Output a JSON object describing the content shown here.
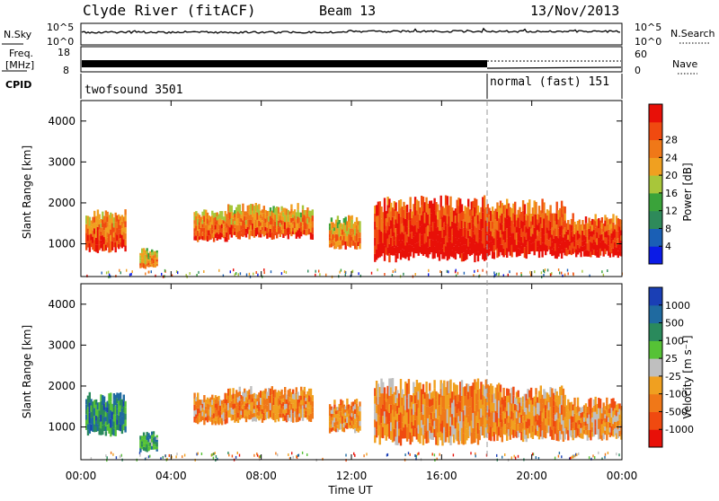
{
  "header": {
    "title": "Clyde River (fitACF)",
    "beam": "Beam 13",
    "date": "13/Nov/2013"
  },
  "strip_panels": {
    "nsky_label": "N.Sky",
    "nsearch_label": "N.Search",
    "nsky_ticks": [
      "10^5",
      "10^0"
    ],
    "freq_label_line1": "Freq.",
    "freq_label_line2": "[MHz]",
    "freq_ticks": [
      "18",
      "8"
    ],
    "nave_label": "Nave",
    "nave_ticks": [
      "60",
      "0"
    ],
    "cpid_label": "CPID",
    "cpid_segments": [
      {
        "name": "twofsound 3501",
        "start_hour": 0,
        "end_hour": 18
      },
      {
        "name": "normal (fast) 151",
        "start_hour": 18,
        "end_hour": 24
      }
    ]
  },
  "colors": {
    "power": [
      "#0b1be6",
      "#1a5fb5",
      "#2e8a5a",
      "#3aa33a",
      "#a8c63a",
      "#f0a020",
      "#f07818",
      "#f04a10",
      "#e81008"
    ],
    "velocity": [
      "#1a3fb5",
      "#1f6aa0",
      "#2a8a5c",
      "#56c236",
      "#bfbfbf",
      "#f0a020",
      "#f07818",
      "#f04a10",
      "#e81008"
    ]
  },
  "chart_data": [
    {
      "type": "heatmap",
      "name": "power",
      "xlabel": "",
      "ylabel": "Slant Range [km]",
      "xlim": [
        0,
        24
      ],
      "ylim": [
        200,
        4500
      ],
      "yticks": [
        "1000",
        "2000",
        "3000",
        "4000"
      ],
      "colorbar_label": "Power [dB]",
      "colorbar_ticks": [
        "4",
        "8",
        "12",
        "16",
        "20",
        "24",
        "28"
      ],
      "regions": [
        {
          "t0": 0.2,
          "t1": 2.0,
          "r0": 700,
          "r1": 1850,
          "level": 0.75
        },
        {
          "t0": 2.6,
          "t1": 3.4,
          "r0": 350,
          "r1": 900,
          "level": 0.6
        },
        {
          "t0": 5.0,
          "t1": 6.5,
          "r0": 1000,
          "r1": 1850,
          "level": 0.72
        },
        {
          "t0": 6.5,
          "t1": 10.3,
          "r0": 1050,
          "r1": 2000,
          "level": 0.68
        },
        {
          "t0": 11.0,
          "t1": 12.4,
          "r0": 800,
          "r1": 1700,
          "level": 0.62
        },
        {
          "t0": 13.0,
          "t1": 18.0,
          "r0": 450,
          "r1": 2200,
          "level": 0.9
        },
        {
          "t0": 18.0,
          "t1": 21.5,
          "r0": 550,
          "r1": 2100,
          "level": 0.85
        },
        {
          "t0": 21.5,
          "t1": 24.0,
          "r0": 600,
          "r1": 1750,
          "level": 0.85
        }
      ]
    },
    {
      "type": "heatmap",
      "name": "velocity",
      "xlabel": "Time UT",
      "ylabel": "Slant Range [km]",
      "xlim": [
        0,
        24
      ],
      "ylim": [
        200,
        4500
      ],
      "xticks": [
        "00:00",
        "04:00",
        "08:00",
        "12:00",
        "16:00",
        "20:00",
        "00:00"
      ],
      "yticks": [
        "1000",
        "2000",
        "3000",
        "4000"
      ],
      "colorbar_label": "Velocity [m s⁻¹]",
      "colorbar_ticks": [
        "1000",
        "500",
        "100",
        "25",
        "-25",
        "-100",
        "-500",
        "-1000"
      ],
      "regions": [
        {
          "t0": 0.2,
          "t1": 2.0,
          "r0": 700,
          "r1": 1850,
          "level": 0.25
        },
        {
          "t0": 2.6,
          "t1": 3.4,
          "r0": 350,
          "r1": 900,
          "level": 0.3
        },
        {
          "t0": 5.0,
          "t1": 6.5,
          "r0": 1000,
          "r1": 1850,
          "level": 0.68
        },
        {
          "t0": 6.5,
          "t1": 10.3,
          "r0": 1050,
          "r1": 2000,
          "level": 0.68
        },
        {
          "t0": 11.0,
          "t1": 12.4,
          "r0": 800,
          "r1": 1700,
          "level": 0.68
        },
        {
          "t0": 13.0,
          "t1": 18.0,
          "r0": 450,
          "r1": 2200,
          "level": 0.68
        },
        {
          "t0": 18.0,
          "t1": 21.5,
          "r0": 550,
          "r1": 2100,
          "level": 0.68
        },
        {
          "t0": 21.5,
          "t1": 24.0,
          "r0": 600,
          "r1": 1750,
          "level": 0.66
        }
      ]
    }
  ]
}
